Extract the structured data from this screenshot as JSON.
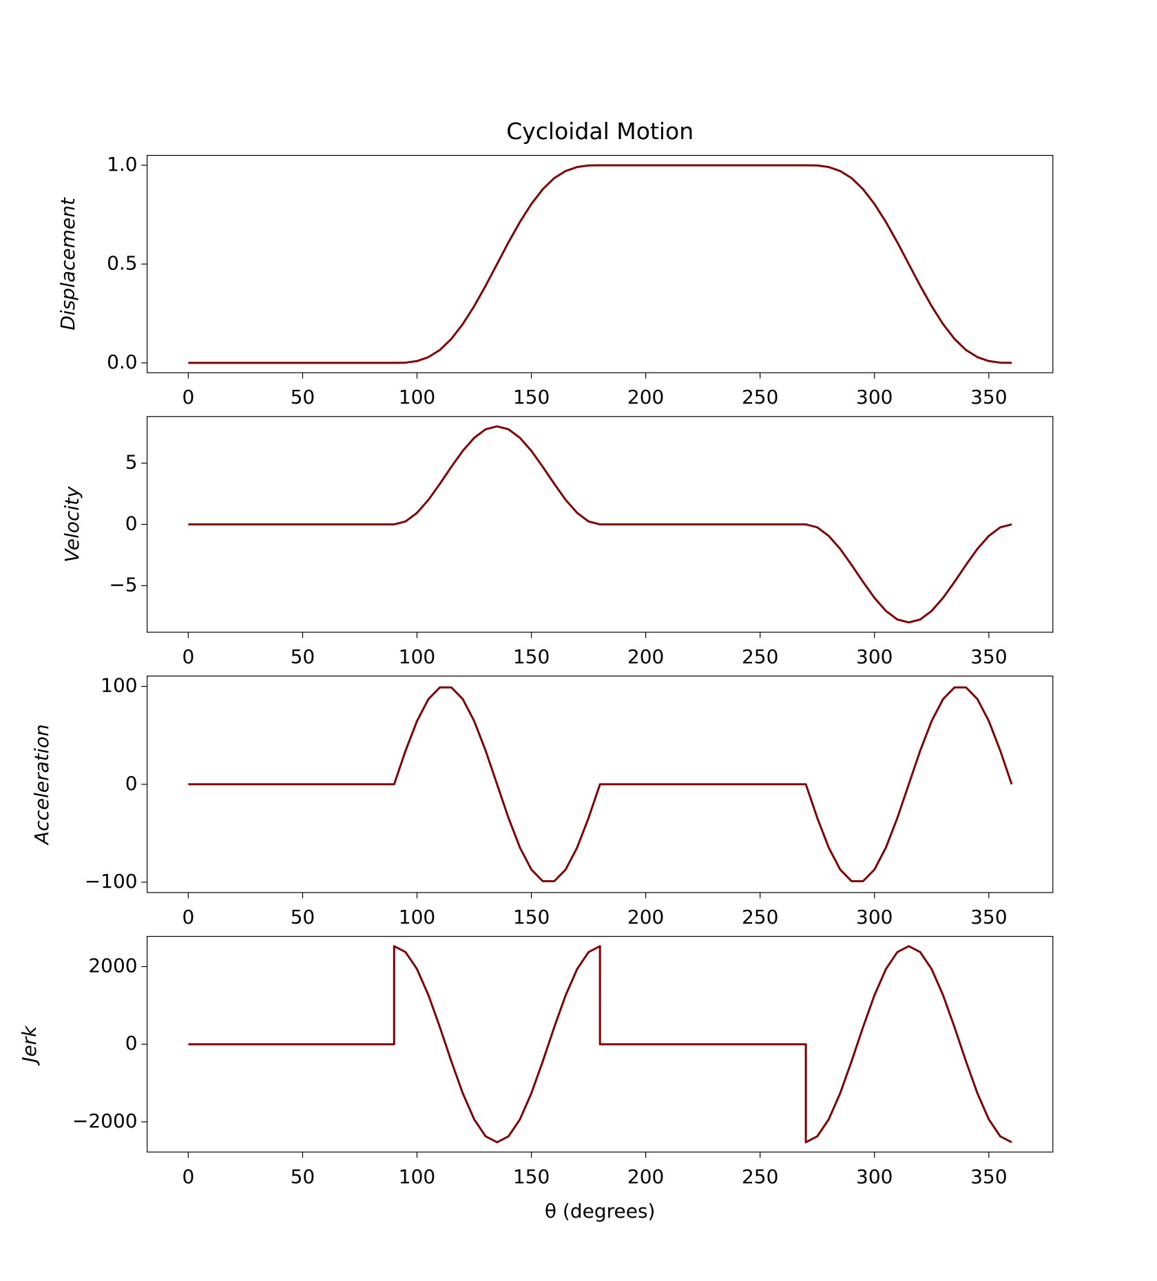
{
  "chart_data": [
    {
      "type": "line",
      "title": "Cycloidal Motion",
      "y_label": "Displacement",
      "color": "#800000",
      "xlim": [
        -18,
        378
      ],
      "xticks": [
        0,
        50,
        100,
        150,
        200,
        250,
        300,
        350
      ],
      "ylim": [
        -0.05,
        1.05
      ],
      "yticks": [
        {
          "value": 0,
          "label": "0.0"
        },
        0.5,
        {
          "value": 1,
          "label": "1.0"
        }
      ],
      "x": [
        0,
        5,
        10,
        15,
        20,
        25,
        30,
        35,
        40,
        45,
        50,
        55,
        60,
        65,
        70,
        75,
        80,
        85,
        90,
        95,
        100,
        105,
        110,
        115,
        120,
        125,
        130,
        135,
        140,
        145,
        150,
        155,
        160,
        165,
        170,
        175,
        180,
        185,
        190,
        195,
        200,
        205,
        210,
        215,
        220,
        225,
        230,
        235,
        240,
        245,
        250,
        255,
        260,
        265,
        270,
        275,
        280,
        285,
        290,
        295,
        300,
        305,
        310,
        315,
        320,
        325,
        330,
        335,
        340,
        345,
        350,
        355,
        360
      ],
      "values": [
        0,
        0,
        0,
        0,
        0,
        0,
        0,
        0,
        0,
        0,
        0,
        0,
        0,
        0,
        0,
        0,
        0,
        0,
        0,
        0.001,
        0.009,
        0.029,
        0.065,
        0.121,
        0.196,
        0.287,
        0.39,
        0.5,
        0.61,
        0.713,
        0.804,
        0.879,
        0.935,
        0.971,
        0.991,
        0.999,
        1,
        1,
        1,
        1,
        1,
        1,
        1,
        1,
        1,
        1,
        1,
        1,
        1,
        1,
        1,
        1,
        1,
        1,
        1,
        0.999,
        0.991,
        0.971,
        0.935,
        0.879,
        0.804,
        0.713,
        0.61,
        0.5,
        0.39,
        0.287,
        0.196,
        0.121,
        0.065,
        0.029,
        0.009,
        0.001,
        0
      ]
    },
    {
      "type": "line",
      "y_label": "Velocity",
      "color": "#800000",
      "xlim": [
        -18,
        378
      ],
      "xticks": [
        0,
        50,
        100,
        150,
        200,
        250,
        300,
        350
      ],
      "ylim": [
        -8.8,
        8.8
      ],
      "yticks": [
        {
          "value": -5,
          "label": "−5"
        },
        0,
        5
      ],
      "x": [
        0,
        5,
        10,
        15,
        20,
        25,
        30,
        35,
        40,
        45,
        50,
        55,
        60,
        65,
        70,
        75,
        80,
        85,
        90,
        95,
        100,
        105,
        110,
        115,
        120,
        125,
        130,
        135,
        140,
        145,
        150,
        155,
        160,
        165,
        170,
        175,
        180,
        185,
        190,
        195,
        200,
        205,
        210,
        215,
        220,
        225,
        230,
        235,
        240,
        245,
        250,
        255,
        260,
        265,
        270,
        275,
        280,
        285,
        290,
        295,
        300,
        305,
        310,
        315,
        320,
        325,
        330,
        335,
        340,
        345,
        350,
        355,
        360
      ],
      "values": [
        0,
        0,
        0,
        0,
        0,
        0,
        0,
        0,
        0,
        0,
        0,
        0,
        0,
        0,
        0,
        0,
        0,
        0,
        0,
        0.24,
        0.94,
        2,
        3.31,
        4.69,
        6,
        7.06,
        7.76,
        8,
        7.76,
        7.06,
        6,
        4.69,
        3.31,
        2,
        0.94,
        0.24,
        0,
        0,
        0,
        0,
        0,
        0,
        0,
        0,
        0,
        0,
        0,
        0,
        0,
        0,
        0,
        0,
        0,
        0,
        0,
        -0.24,
        -0.94,
        -2,
        -3.31,
        -4.69,
        -6,
        -7.06,
        -7.76,
        -8,
        -7.76,
        -7.06,
        -6,
        -4.69,
        -3.31,
        -2,
        -0.94,
        -0.24,
        0
      ]
    },
    {
      "type": "line",
      "y_label": "Acceleration",
      "color": "#800000",
      "xlim": [
        -18,
        378
      ],
      "xticks": [
        0,
        50,
        100,
        150,
        200,
        250,
        300,
        350
      ],
      "ylim": [
        -110.6,
        110.6
      ],
      "yticks": [
        {
          "value": -100,
          "label": "−100"
        },
        0,
        100
      ],
      "x": [
        0,
        5,
        10,
        15,
        20,
        25,
        30,
        35,
        40,
        45,
        50,
        55,
        60,
        65,
        70,
        75,
        80,
        85,
        90,
        95,
        100,
        105,
        110,
        115,
        120,
        125,
        130,
        135,
        140,
        145,
        150,
        155,
        160,
        165,
        170,
        175,
        180,
        185,
        190,
        195,
        200,
        205,
        210,
        215,
        220,
        225,
        230,
        235,
        240,
        245,
        250,
        255,
        260,
        265,
        270,
        275,
        280,
        285,
        290,
        295,
        300,
        305,
        310,
        315,
        320,
        325,
        330,
        335,
        340,
        345,
        350,
        355,
        360
      ],
      "values": [
        0,
        0,
        0,
        0,
        0,
        0,
        0,
        0,
        0,
        0,
        0,
        0,
        0,
        0,
        0,
        0,
        0,
        0,
        0,
        34.38,
        64.62,
        87.06,
        99,
        99,
        87.06,
        64.62,
        34.38,
        0,
        -34.38,
        -64.62,
        -87.06,
        -99,
        -99,
        -87.06,
        -64.62,
        -34.38,
        0,
        0,
        0,
        0,
        0,
        0,
        0,
        0,
        0,
        0,
        0,
        0,
        0,
        0,
        0,
        0,
        0,
        0,
        0,
        -34.38,
        -64.62,
        -87.06,
        -99,
        -99,
        -87.06,
        -64.62,
        -34.38,
        0,
        34.38,
        64.62,
        87.06,
        99,
        99,
        87.06,
        64.62,
        34.38,
        0
      ]
    },
    {
      "type": "line",
      "y_label": "Jerk",
      "x_label": "θ (degrees)",
      "color": "#800000",
      "xlim": [
        -18,
        378
      ],
      "xticks": [
        0,
        50,
        100,
        150,
        200,
        250,
        300,
        350
      ],
      "ylim": [
        -2779,
        2779
      ],
      "yticks": [
        {
          "value": -2000,
          "label": "−2000"
        },
        0,
        2000
      ],
      "x": [
        0,
        5,
        10,
        15,
        20,
        25,
        30,
        35,
        40,
        45,
        50,
        55,
        60,
        65,
        70,
        75,
        80,
        85,
        90,
        90,
        95,
        100,
        105,
        110,
        115,
        120,
        125,
        130,
        135,
        140,
        145,
        150,
        155,
        160,
        165,
        170,
        175,
        180,
        180,
        185,
        190,
        195,
        200,
        205,
        210,
        215,
        220,
        225,
        230,
        235,
        240,
        245,
        250,
        255,
        260,
        265,
        270,
        270,
        275,
        280,
        285,
        290,
        295,
        300,
        305,
        310,
        315,
        320,
        325,
        330,
        335,
        340,
        345,
        350,
        355,
        360
      ],
      "values": [
        0,
        0,
        0,
        0,
        0,
        0,
        0,
        0,
        0,
        0,
        0,
        0,
        0,
        0,
        0,
        0,
        0,
        0,
        0,
        2527,
        2374,
        1936,
        1263,
        439,
        -439,
        -1263,
        -1936,
        -2374,
        -2527,
        -2374,
        -1936,
        -1263,
        -439,
        439,
        1263,
        1936,
        2374,
        2527,
        0,
        0,
        0,
        0,
        0,
        0,
        0,
        0,
        0,
        0,
        0,
        0,
        0,
        0,
        0,
        0,
        0,
        0,
        0,
        -2527,
        -2374,
        -1936,
        -1263,
        -439,
        439,
        1263,
        1936,
        2374,
        2527,
        2374,
        1936,
        1263,
        439,
        -439,
        -1263,
        -1936,
        -2374,
        -2527
      ]
    }
  ]
}
